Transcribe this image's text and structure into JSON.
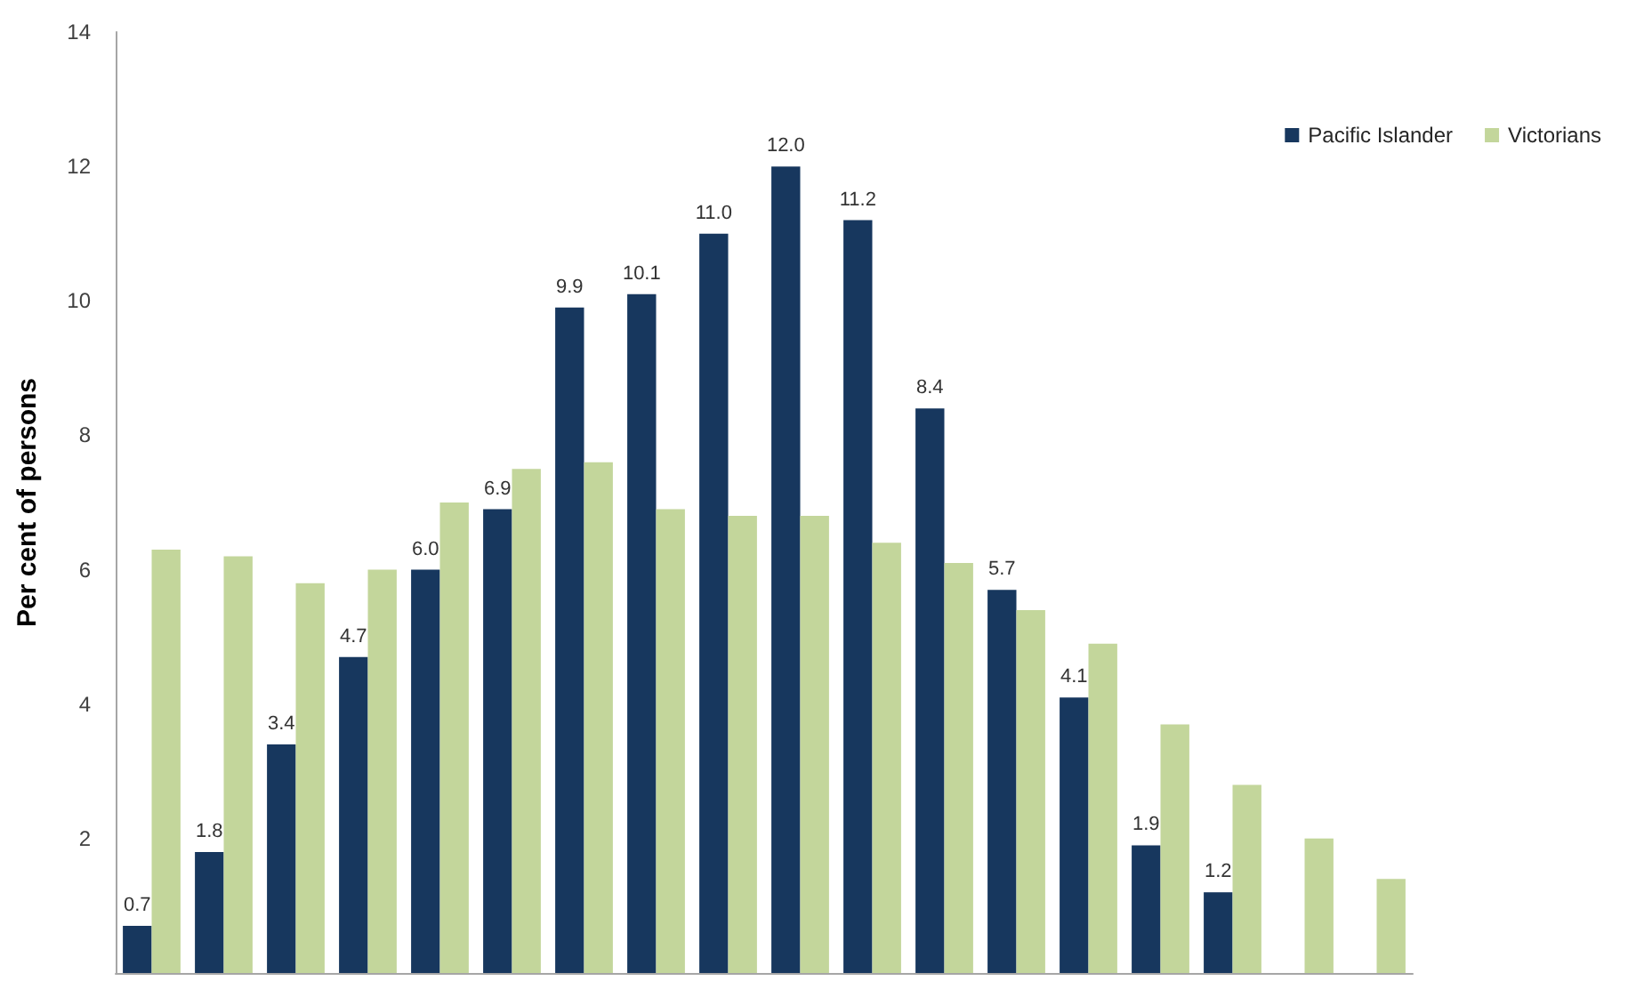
{
  "chart_data": {
    "type": "bar",
    "ylabel": "Per cent of persons",
    "categories": [
      null,
      null,
      null,
      null,
      null,
      null,
      null,
      null,
      null,
      null,
      null,
      null,
      null,
      null,
      null,
      null,
      null,
      null
    ],
    "series": [
      {
        "name": "Pacific Islander",
        "color": "#17375e",
        "values": [
          0.7,
          1.8,
          3.4,
          4.7,
          6.0,
          6.9,
          9.9,
          10.1,
          11.0,
          12.0,
          11.2,
          8.4,
          5.7,
          4.1,
          1.9,
          1.2,
          null,
          null
        ],
        "value_labels": [
          "0.7",
          "1.8",
          "3.4",
          "4.7",
          "6.0",
          "6.9",
          "9.9",
          "10.1",
          "11.0",
          "12.0",
          "11.2",
          "8.4",
          "5.7",
          "4.1",
          "1.9",
          "1.2",
          null,
          null
        ]
      },
      {
        "name": "Victorians",
        "color": "#c3d69b",
        "values": [
          6.3,
          6.2,
          5.8,
          6.0,
          7.0,
          7.5,
          7.6,
          6.9,
          6.8,
          6.8,
          6.4,
          6.1,
          5.4,
          4.9,
          3.7,
          2.8,
          2.0,
          1.4
        ]
      }
    ],
    "ylim": [
      0,
      14
    ],
    "yticks": [
      2,
      4,
      6,
      8,
      10,
      12,
      14
    ],
    "tick_labels": "y",
    "grid": false,
    "legend": "top right"
  }
}
